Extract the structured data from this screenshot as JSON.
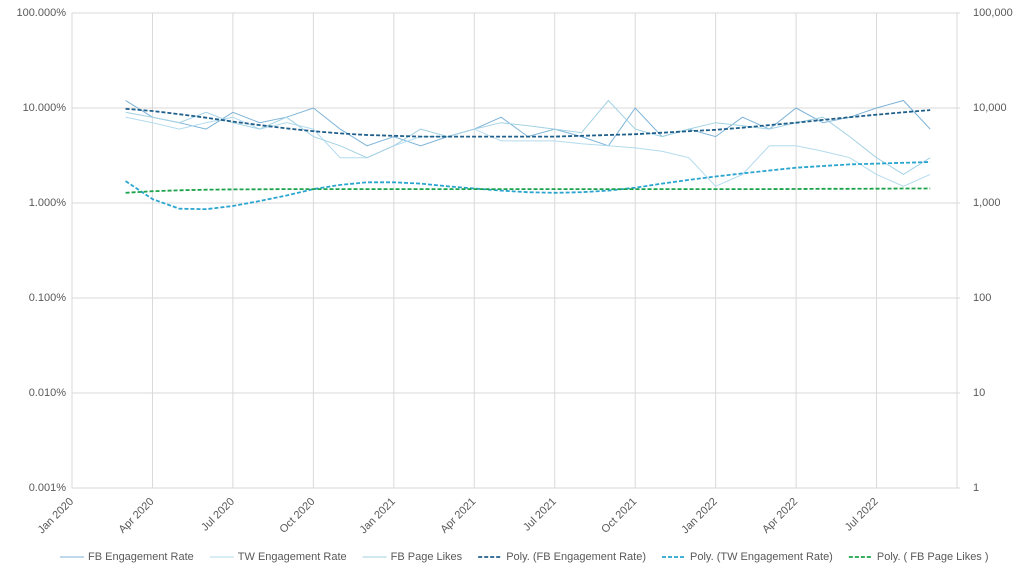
{
  "chart_data": {
    "type": "line",
    "log_scale": true,
    "grid": true,
    "legend": "bottom",
    "x": [
      "2020-03",
      "2020-04",
      "2020-05",
      "2020-06",
      "2020-07",
      "2020-08",
      "2020-09",
      "2020-10",
      "2020-11",
      "2020-12",
      "2021-01",
      "2021-02",
      "2021-03",
      "2021-04",
      "2021-05",
      "2021-06",
      "2021-07",
      "2021-08",
      "2021-09",
      "2021-10",
      "2021-11",
      "2021-12",
      "2022-01",
      "2022-02",
      "2022-03",
      "2022-04",
      "2022-05",
      "2022-06",
      "2022-07",
      "2022-08",
      "2022-09"
    ],
    "xlim": [
      "2020-01",
      "2022-10"
    ],
    "xticks": [
      {
        "value": "2020-01",
        "label": "Jan 2020"
      },
      {
        "value": "2020-04",
        "label": "Apr 2020"
      },
      {
        "value": "2020-07",
        "label": "Jul 2020"
      },
      {
        "value": "2020-10",
        "label": "Oct 2020"
      },
      {
        "value": "2021-01",
        "label": "Jan 2021"
      },
      {
        "value": "2021-04",
        "label": "Apr 2021"
      },
      {
        "value": "2021-07",
        "label": "Jul 2021"
      },
      {
        "value": "2021-10",
        "label": "Oct 2021"
      },
      {
        "value": "2022-01",
        "label": "Jan 2022"
      },
      {
        "value": "2022-04",
        "label": "Apr 2022"
      },
      {
        "value": "2022-07",
        "label": "Jul 2022"
      }
    ],
    "ylim": [
      0.001,
      100
    ],
    "yticks": [
      {
        "value": 0.001,
        "label": "0.001%"
      },
      {
        "value": 0.01,
        "label": "0.010%"
      },
      {
        "value": 0.1,
        "label": "0.100%"
      },
      {
        "value": 1,
        "label": "1.000%"
      },
      {
        "value": 10,
        "label": "10.000%"
      },
      {
        "value": 100,
        "label": "100.000%"
      }
    ],
    "y2lim": [
      1,
      100000
    ],
    "y2ticks": [
      1,
      10,
      100,
      {
        "value": 1000,
        "label": "1,000"
      },
      {
        "value": 10000,
        "label": "10,000"
      },
      {
        "value": 100000,
        "label": "100,000"
      }
    ],
    "series": [
      {
        "name": "FB Engagement Rate",
        "color": "#7db3d8",
        "values": [
          12,
          8,
          7,
          6,
          9,
          7,
          8,
          10,
          6,
          4,
          5,
          4,
          5,
          6,
          8,
          5,
          6,
          5,
          4,
          10,
          5,
          6,
          5,
          8,
          6,
          10,
          7,
          8,
          10,
          12,
          6
        ]
      },
      {
        "name": "TW Engagement Rate",
        "color": "#b3dbee",
        "values": [
          8,
          7,
          6,
          7,
          8,
          6,
          7,
          6,
          3,
          3,
          4,
          5,
          5,
          6,
          4.5,
          4.5,
          4.5,
          4.2,
          4,
          3.8,
          3.5,
          3,
          1.5,
          2,
          4,
          4,
          3.5,
          3,
          2,
          1.5,
          2
        ]
      },
      {
        "name": "FB Page Likes",
        "color": "#a3d2e3",
        "axis": "y2",
        "values": [
          9000,
          8000,
          7000,
          9000,
          7000,
          6000,
          8000,
          5000,
          4000,
          3000,
          4000,
          6000,
          5000,
          6000,
          7000,
          6500,
          6000,
          5500,
          12000,
          6000,
          5000,
          6000,
          7000,
          6500,
          6000,
          7000,
          8000,
          5000,
          3000,
          2000,
          3000
        ]
      },
      {
        "name": "Poly. (FB Engagement Rate)",
        "color": "#1f5f8b",
        "dashed": true,
        "values": [
          9.8,
          9.3,
          8.6,
          7.9,
          7.2,
          6.6,
          6.1,
          5.7,
          5.4,
          5.2,
          5.1,
          5.0,
          5.0,
          5.0,
          5.0,
          5.0,
          5.0,
          5.1,
          5.2,
          5.3,
          5.5,
          5.7,
          5.9,
          6.2,
          6.6,
          7.0,
          7.5,
          8.0,
          8.5,
          9.0,
          9.5
        ]
      },
      {
        "name": "Poly. (TW Engagement Rate)",
        "color": "#2aa5d0",
        "dashed": true,
        "values": [
          1.7,
          1.1,
          0.87,
          0.86,
          0.93,
          1.05,
          1.2,
          1.4,
          1.55,
          1.65,
          1.65,
          1.6,
          1.5,
          1.42,
          1.35,
          1.3,
          1.28,
          1.3,
          1.35,
          1.45,
          1.6,
          1.75,
          1.9,
          2.05,
          2.2,
          2.35,
          2.45,
          2.55,
          2.6,
          2.65,
          2.7
        ]
      },
      {
        "name": "Poly. ( FB Page Likes )",
        "color": "#1aa34a",
        "dashed": true,
        "axis": "y2",
        "values": [
          1280,
          1330,
          1360,
          1380,
          1390,
          1395,
          1400,
          1400,
          1400,
          1400,
          1400,
          1400,
          1400,
          1400,
          1400,
          1400,
          1400,
          1400,
          1400,
          1400,
          1400,
          1400,
          1400,
          1400,
          1400,
          1405,
          1410,
          1410,
          1415,
          1420,
          1420
        ]
      }
    ]
  }
}
